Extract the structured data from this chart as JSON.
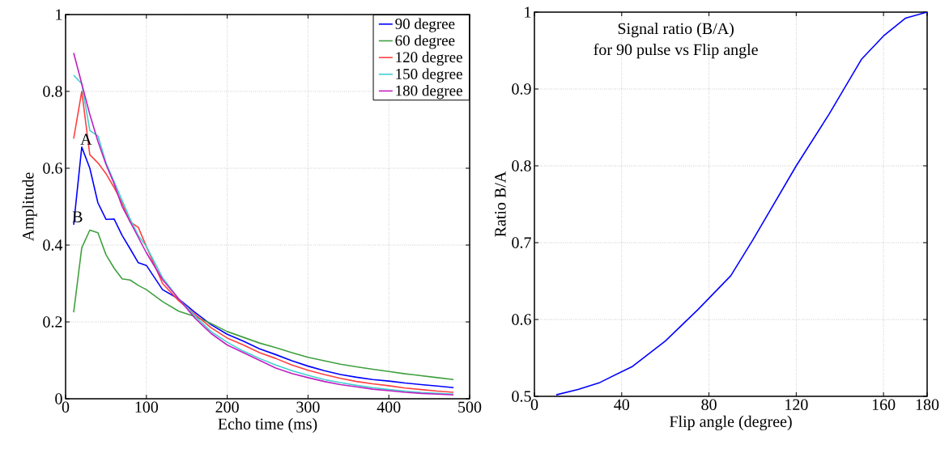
{
  "chart_data": [
    {
      "type": "line",
      "xlabel": "Echo time (ms)",
      "ylabel": "Amplitude",
      "x": [
        10,
        20,
        30,
        40,
        50,
        60,
        70,
        80,
        90,
        100,
        120,
        140,
        160,
        180,
        200,
        220,
        240,
        260,
        280,
        300,
        320,
        340,
        360,
        380,
        400,
        420,
        440,
        460,
        480
      ],
      "series": [
        {
          "name": "90 degree",
          "color": "#0000ff",
          "values": [
            0.453,
            0.655,
            0.6,
            0.51,
            0.467,
            0.468,
            0.425,
            0.39,
            0.354,
            0.347,
            0.284,
            0.26,
            0.225,
            0.193,
            0.168,
            0.15,
            0.13,
            0.115,
            0.099,
            0.085,
            0.073,
            0.063,
            0.056,
            0.05,
            0.046,
            0.041,
            0.037,
            0.033,
            0.029
          ]
        },
        {
          "name": "60 degree",
          "color": "#3fa03f",
          "values": [
            0.225,
            0.393,
            0.439,
            0.432,
            0.375,
            0.34,
            0.312,
            0.309,
            0.295,
            0.284,
            0.253,
            0.228,
            0.214,
            0.196,
            0.175,
            0.16,
            0.145,
            0.133,
            0.12,
            0.108,
            0.099,
            0.09,
            0.083,
            0.077,
            0.071,
            0.065,
            0.06,
            0.055,
            0.05
          ]
        },
        {
          "name": "120 degree",
          "color": "#ff4040",
          "values": [
            0.677,
            0.8,
            0.635,
            0.614,
            0.586,
            0.55,
            0.509,
            0.46,
            0.446,
            0.396,
            0.3,
            0.255,
            0.22,
            0.185,
            0.158,
            0.14,
            0.12,
            0.105,
            0.088,
            0.074,
            0.063,
            0.053,
            0.045,
            0.039,
            0.034,
            0.028,
            0.024,
            0.02,
            0.017
          ]
        },
        {
          "name": "150 degree",
          "color": "#40d0d0",
          "values": [
            0.842,
            0.82,
            0.698,
            0.684,
            0.614,
            0.565,
            0.516,
            0.467,
            0.425,
            0.396,
            0.315,
            0.26,
            0.215,
            0.175,
            0.147,
            0.124,
            0.105,
            0.088,
            0.073,
            0.061,
            0.05,
            0.042,
            0.035,
            0.029,
            0.024,
            0.02,
            0.016,
            0.014,
            0.012
          ]
        },
        {
          "name": "180 degree",
          "color": "#c020c0",
          "values": [
            0.9,
            0.82,
            0.74,
            0.67,
            0.61,
            0.56,
            0.5,
            0.46,
            0.42,
            0.38,
            0.31,
            0.26,
            0.21,
            0.17,
            0.14,
            0.12,
            0.1,
            0.08,
            0.066,
            0.055,
            0.045,
            0.037,
            0.031,
            0.025,
            0.021,
            0.017,
            0.014,
            0.012,
            0.01
          ]
        }
      ],
      "xlim": [
        0,
        500
      ],
      "ylim": [
        0,
        1
      ],
      "xticks": [
        0,
        100,
        200,
        300,
        400,
        500
      ],
      "yticks": [
        0,
        0.2,
        0.4,
        0.6,
        0.8,
        1
      ],
      "grid": true,
      "legend": "top right",
      "annotations": [
        {
          "text": "A",
          "x": 20,
          "y": 0.655
        },
        {
          "text": "B",
          "x": 10,
          "y": 0.453
        }
      ]
    },
    {
      "type": "line",
      "title": "Signal ratio (B/A)",
      "subtitle": "for 90 pulse vs Flip angle",
      "xlabel": "Flip angle (degree)",
      "ylabel": "Ratio B/A",
      "x": [
        10,
        20,
        30,
        45,
        60,
        75,
        90,
        100,
        120,
        135,
        150,
        160,
        170,
        180
      ],
      "series": [
        {
          "color": "#0000ff",
          "values": [
            0.502,
            0.509,
            0.518,
            0.539,
            0.572,
            0.613,
            0.657,
            0.703,
            0.8,
            0.867,
            0.939,
            0.969,
            0.992,
            1.0
          ]
        }
      ],
      "xlim": [
        0,
        180
      ],
      "ylim": [
        0.5,
        1
      ],
      "xticks": [
        0,
        40,
        80,
        120,
        160,
        180
      ],
      "yticks": [
        0.5,
        0.6,
        0.7,
        0.8,
        0.9,
        1
      ],
      "grid": true
    }
  ]
}
